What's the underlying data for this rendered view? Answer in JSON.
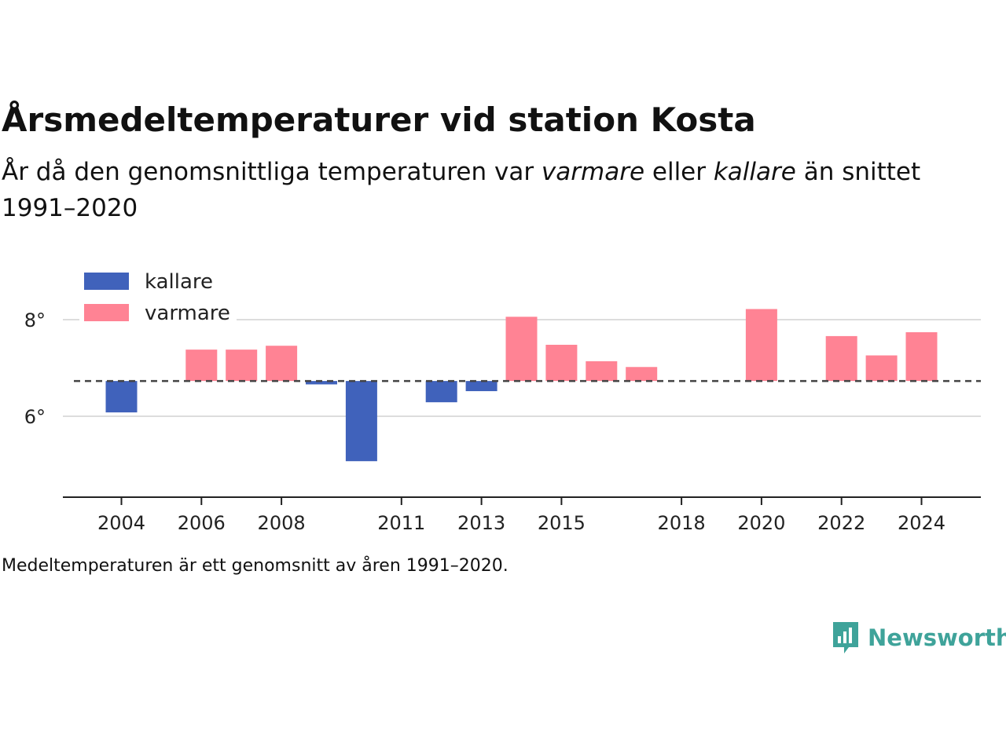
{
  "header": {
    "title": "Årsmedeltemperaturer vid station Kosta",
    "subtitle_pre": "År då den genomsnittliga temperaturen var ",
    "subtitle_em1": "varmare",
    "subtitle_mid": " eller ",
    "subtitle_em2": "kallare",
    "subtitle_post": " än snittet 1991–2020"
  },
  "chart_data": {
    "type": "bar",
    "baseline": 6.73,
    "baseline_style": "dashed",
    "years": [
      2004,
      2005,
      2006,
      2007,
      2008,
      2009,
      2010,
      2011,
      2012,
      2013,
      2014,
      2015,
      2016,
      2017,
      2018,
      2019,
      2020,
      2021,
      2022,
      2023,
      2024
    ],
    "values": [
      6.08,
      null,
      7.38,
      7.38,
      7.46,
      6.66,
      5.07,
      null,
      6.29,
      6.52,
      8.06,
      7.48,
      7.14,
      7.02,
      null,
      null,
      8.22,
      null,
      7.66,
      7.26,
      7.74
    ],
    "x_tick_labels": [
      "2004",
      "2006",
      "2008",
      "2011",
      "2013",
      "2015",
      "2018",
      "2020",
      "2022",
      "2024"
    ],
    "y_ticks": [
      6,
      8
    ],
    "y_tick_labels": [
      "6°",
      "8°"
    ],
    "ylim": [
      4.3,
      9.3
    ],
    "grid": true,
    "legend": [
      {
        "name": "kallare",
        "color": "#4062bb"
      },
      {
        "name": "varmare",
        "color": "#ff8394"
      }
    ],
    "legend_position": "top-left",
    "colors": {
      "cold": "#4062bb",
      "warm": "#ff8394",
      "baseline": "#444444",
      "grid": "#dddddd",
      "axis": "#222222"
    }
  },
  "footer": {
    "note": "Medeltemperaturen är ett genomsnitt av åren 1991–2020.",
    "brand": "Newsworthy",
    "brand_icon": "newsworthy-logo-icon",
    "brand_color": "#3fa39a"
  }
}
